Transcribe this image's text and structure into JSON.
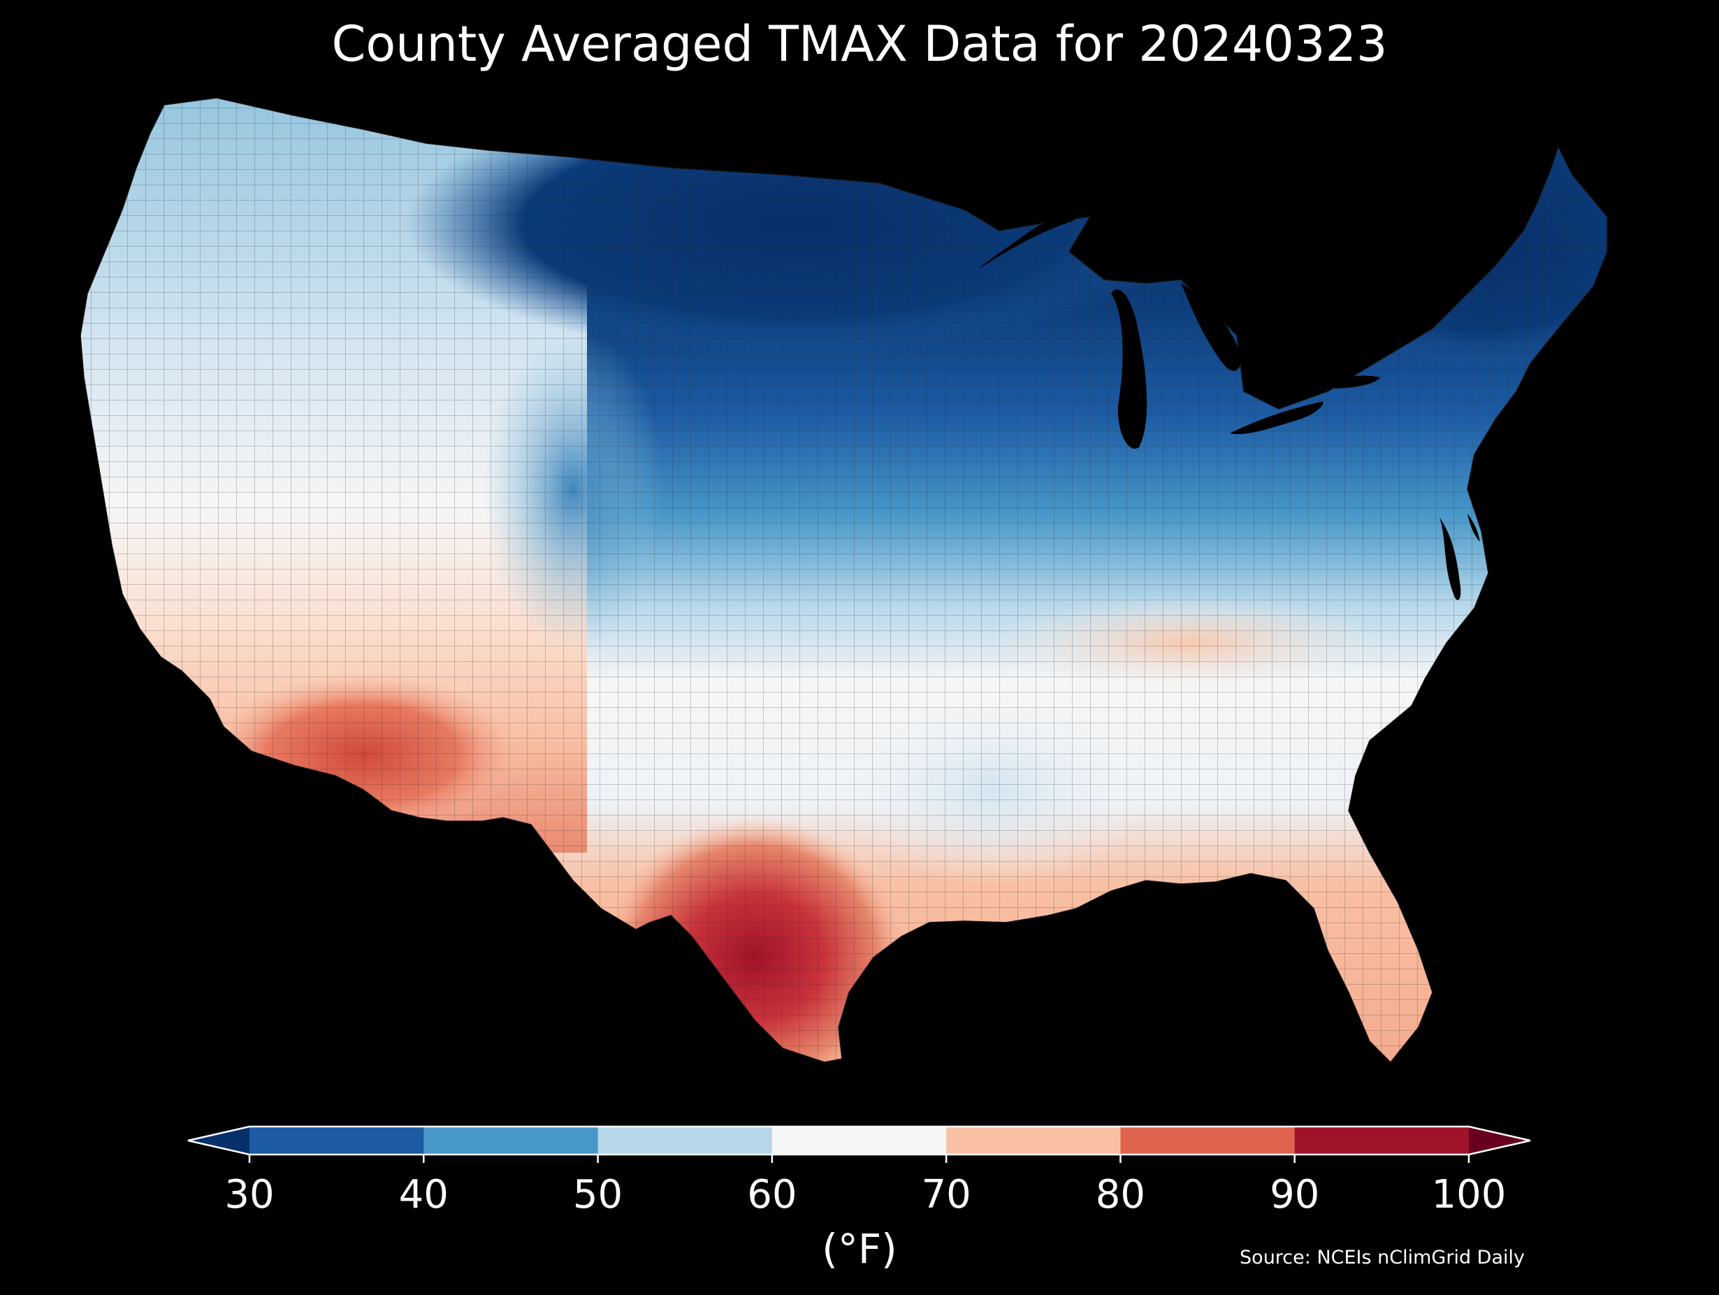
{
  "title": "County Averaged TMAX Data for 20240323",
  "colorbar": {
    "ticks": [
      "30",
      "40",
      "50",
      "60",
      "70",
      "80",
      "90",
      "100"
    ],
    "bins": [
      {
        "from": 30,
        "to": 40,
        "color": "#1c5ba3"
      },
      {
        "from": 40,
        "to": 50,
        "color": "#4797c8"
      },
      {
        "from": 50,
        "to": 60,
        "color": "#b6d7ea"
      },
      {
        "from": 60,
        "to": 70,
        "color": "#f6f6f6"
      },
      {
        "from": 70,
        "to": 80,
        "color": "#f9c0a4"
      },
      {
        "from": 80,
        "to": 90,
        "color": "#de6450"
      },
      {
        "from": 90,
        "to": 100,
        "color": "#a0132a"
      }
    ],
    "under_color": "#08306b",
    "over_color": "#67001f",
    "unit": "(°F)"
  },
  "source": "Source: NCEIs nClimGrid Daily",
  "map": {
    "region": "Contiguous United States",
    "palette_name": "RdBu_r",
    "value_field": "TMAX county average"
  }
}
